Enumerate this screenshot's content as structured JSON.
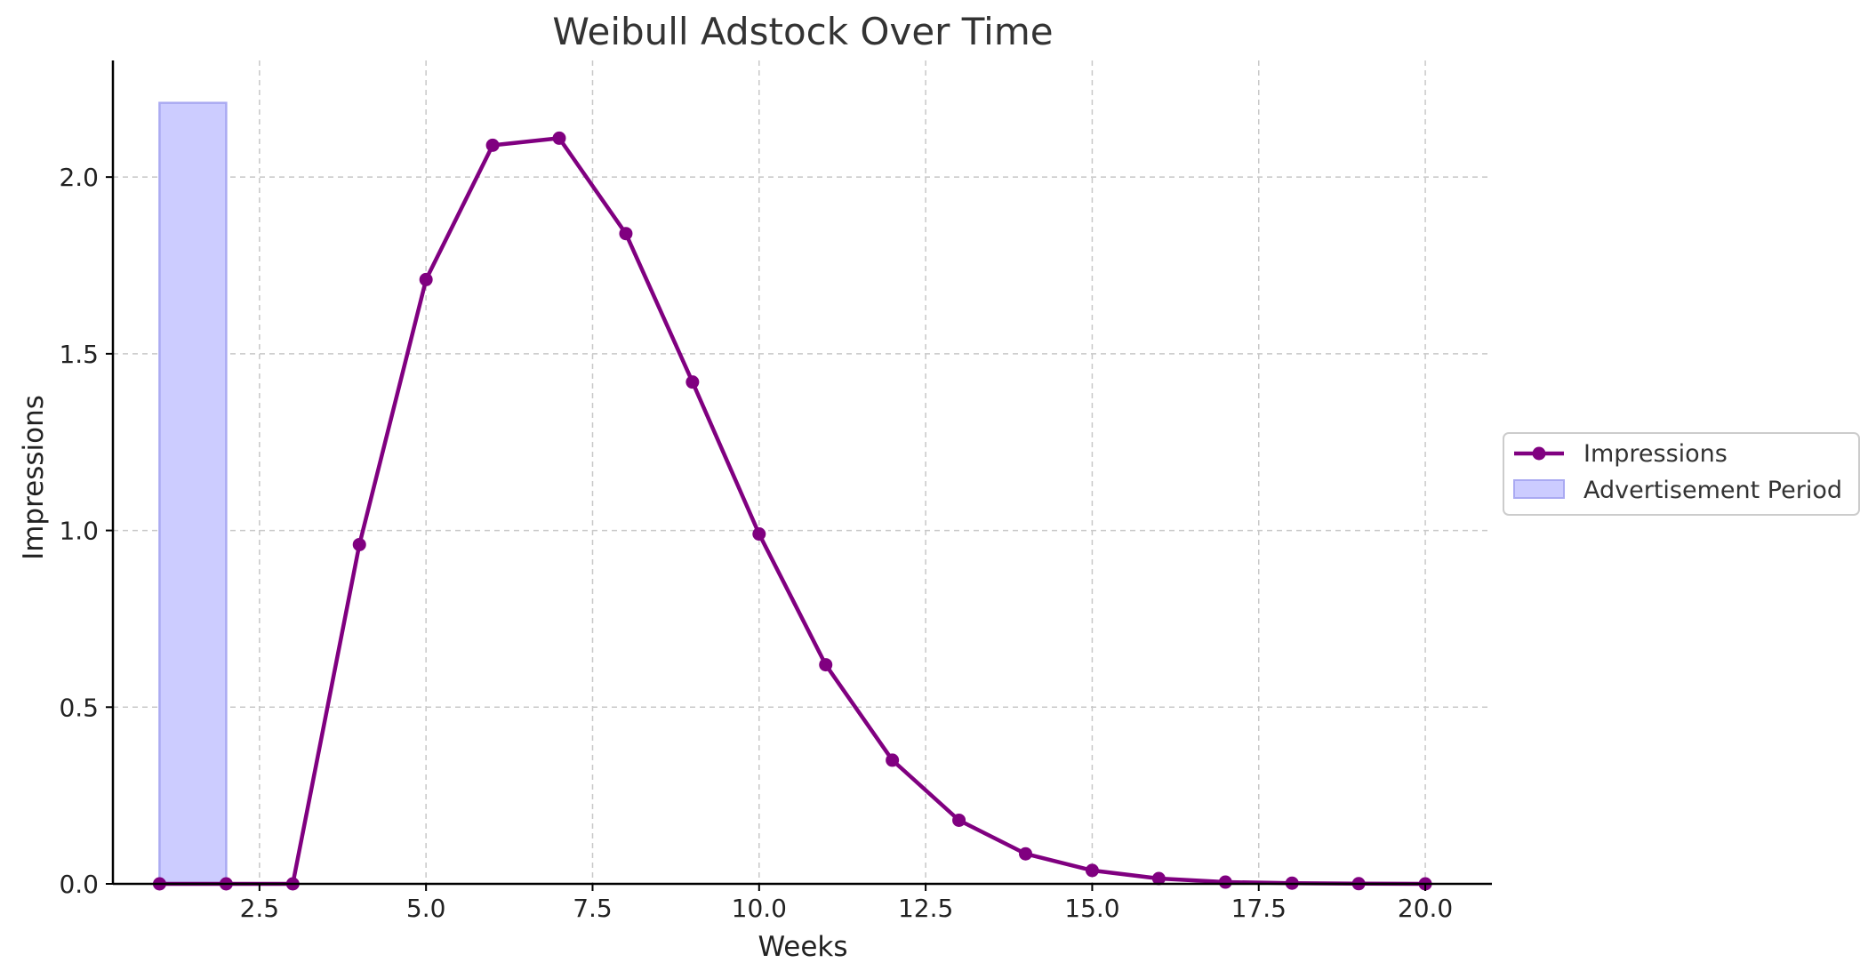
{
  "chart_data": {
    "type": "line",
    "title": "Weibull Adstock Over Time",
    "xlabel": "Weeks",
    "ylabel": "Impressions",
    "xlim": [
      0.3,
      21
    ],
    "ylim": [
      0,
      2.33
    ],
    "xticks": [
      2.5,
      5.0,
      7.5,
      10.0,
      12.5,
      15.0,
      17.5,
      20.0
    ],
    "xtick_labels": [
      "2.5",
      "5.0",
      "7.5",
      "10.0",
      "12.5",
      "15.0",
      "17.5",
      "20.0"
    ],
    "yticks": [
      0.0,
      0.5,
      1.0,
      1.5,
      2.0
    ],
    "ytick_labels": [
      "0.0",
      "0.5",
      "1.0",
      "1.5",
      "2.0"
    ],
    "grid": true,
    "legend_position": "center-right outside",
    "series": [
      {
        "name": "Impressions",
        "type": "line",
        "marker": "circle",
        "color": "#800080",
        "x": [
          1,
          2,
          3,
          4,
          5,
          6,
          7,
          8,
          9,
          10,
          11,
          12,
          13,
          14,
          15,
          16,
          17,
          18,
          19,
          20
        ],
        "y": [
          0.0,
          0.0,
          0.0,
          0.96,
          1.71,
          2.09,
          2.11,
          1.84,
          1.42,
          0.99,
          0.62,
          0.35,
          0.18,
          0.085,
          0.038,
          0.015,
          0.005,
          0.002,
          0.0005,
          0.0
        ]
      },
      {
        "name": "Advertisement Period",
        "type": "area",
        "color": "#ccccff",
        "edge_color": "#aaaaf2",
        "x_range": [
          1,
          2
        ],
        "y_top": 2.21
      }
    ]
  }
}
